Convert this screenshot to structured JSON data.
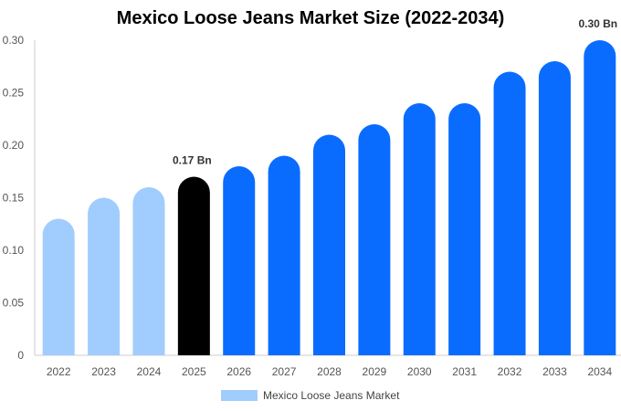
{
  "chart_data": {
    "type": "bar",
    "title": "Mexico Loose Jeans Market Size (2022-2034)",
    "xlabel": "",
    "ylabel": "",
    "categories": [
      "2022",
      "2023",
      "2024",
      "2025",
      "2026",
      "2027",
      "2028",
      "2029",
      "2030",
      "2031",
      "2032",
      "2033",
      "2034"
    ],
    "series": [
      {
        "name": "Mexico Loose Jeans Market",
        "values": [
          0.13,
          0.15,
          0.16,
          0.17,
          0.18,
          0.19,
          0.21,
          0.22,
          0.24,
          0.24,
          0.27,
          0.28,
          0.3
        ]
      }
    ],
    "ylim": [
      0,
      0.3
    ],
    "yticks": [
      "0",
      "0.05",
      "0.10",
      "0.15",
      "0.20",
      "0.25",
      "0.30"
    ],
    "data_labels": [
      {
        "category": "2025",
        "text": "0.17 Bn"
      },
      {
        "category": "2034",
        "text": "0.30 Bn"
      }
    ],
    "colors": {
      "historical": "#a0cdfd",
      "current": "#000000",
      "forecast": "#0a6cff",
      "legend_swatch": "#a0cdfd"
    },
    "bar_color_groups": [
      "historical",
      "historical",
      "historical",
      "current",
      "forecast",
      "forecast",
      "forecast",
      "forecast",
      "forecast",
      "forecast",
      "forecast",
      "forecast",
      "forecast"
    ],
    "grid": false,
    "legend_position": "bottom-center"
  }
}
